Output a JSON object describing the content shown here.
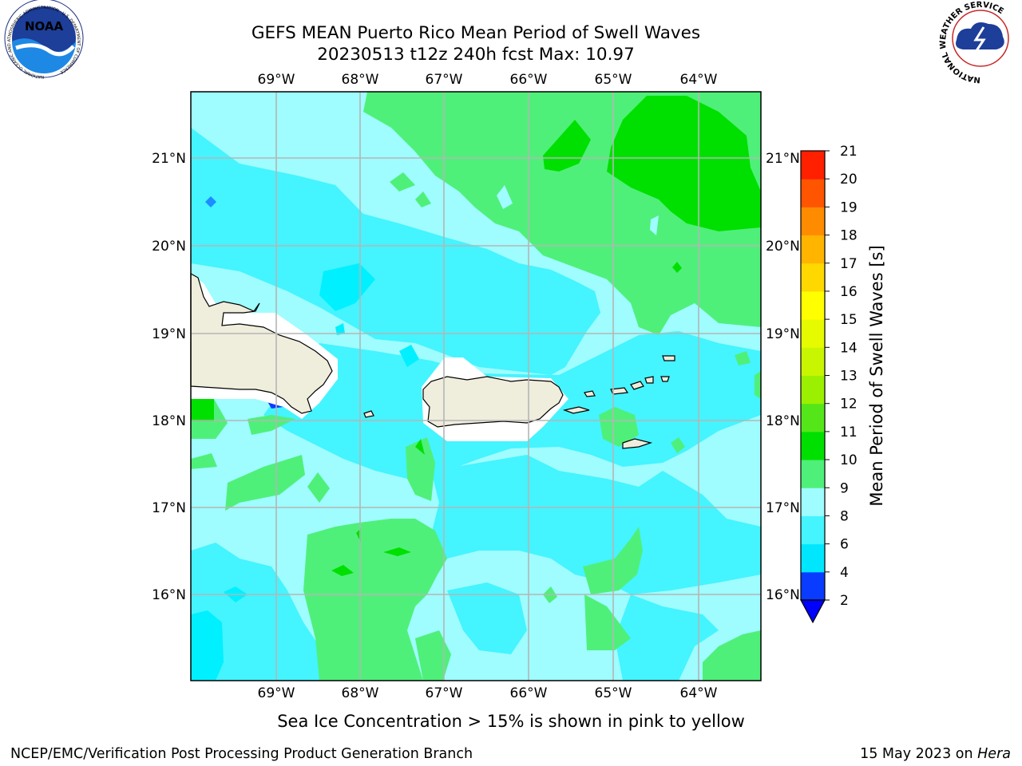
{
  "title": {
    "line1": "GEFS MEAN Puerto Rico Mean Period of Swell Waves",
    "line2": "20230513 t12z 240h fcst   Max: 10.97"
  },
  "map": {
    "lon_labels": [
      "69°W",
      "68°W",
      "67°W",
      "66°W",
      "65°W",
      "64°W"
    ],
    "lat_labels": [
      "21°N",
      "20°N",
      "19°N",
      "18°N",
      "17°N",
      "16°N"
    ]
  },
  "colorbar": {
    "label": "Mean Period of Swell Waves [s]",
    "ticks": [
      "2",
      "4",
      "6",
      "8",
      "9",
      "10",
      "11",
      "12",
      "13",
      "14",
      "15",
      "16",
      "17",
      "18",
      "19",
      "20",
      "21"
    ],
    "colors": [
      "#0a3cff",
      "#00e6ff",
      "#44f4ff",
      "#9ffcff",
      "#4ff07a",
      "#00e000",
      "#55e61a",
      "#9af000",
      "#c8f500",
      "#e6fa00",
      "#ffff00",
      "#ffd800",
      "#ffb400",
      "#ff8c00",
      "#ff5500",
      "#ff2000",
      "#0000ff"
    ]
  },
  "footer": {
    "note": "Sea Ice Concentration > 15% is shown in pink to yellow",
    "credit": "NCEP/EMC/Verification Post Processing Product Generation Branch",
    "date": "15 May 2023 on ",
    "host": "Hera"
  },
  "logos": {
    "left_text": "NOAA",
    "left_ring": "NATIONAL OCEANIC AND ATMOSPHERIC ADMINISTRATION · U.S. DEPARTMENT OF COMMERCE",
    "right_ring": "NATIONAL WEATHER SERVICE"
  }
}
